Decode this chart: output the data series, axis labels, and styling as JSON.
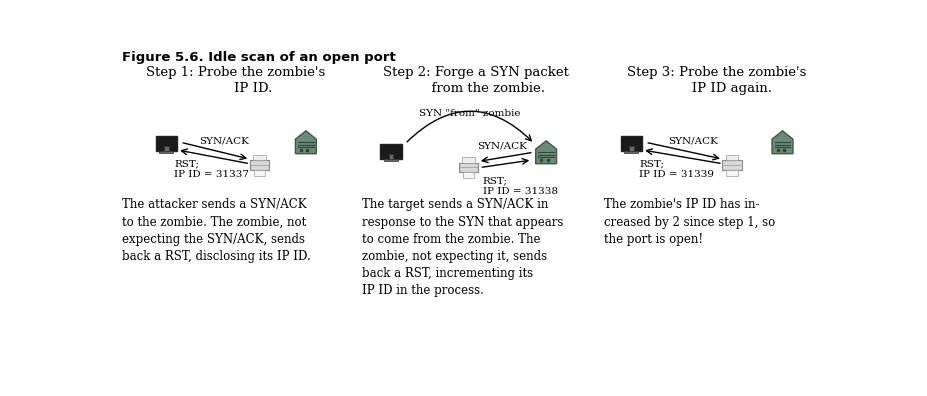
{
  "title": "Figure 5.6. Idle scan of an open port",
  "background_color": "#ffffff",
  "step1_title": "Step 1: Probe the zombie's\n        IP ID.",
  "step2_title": "Step 2: Forge a SYN packet\n      from the zombie.",
  "step3_title": "Step 3: Probe the zombie's\n       IP ID again.",
  "step2_top_label": "SYN \"from\" zombie",
  "s1_arrow1": "SYN/ACK",
  "s1_arrow2": "RST;\nIP ID = 31337",
  "s2_arrow1": "SYN/ACK",
  "s2_arrow2": "RST;\nIP ID = 31338",
  "s3_arrow1": "SYN/ACK",
  "s3_arrow2": "RST;\nIP ID = 31339",
  "desc1": "The attacker sends a SYN/ACK\nto the zombie. The zombie, not\nexpecting the SYN/ACK, sends\nback a RST, disclosing its IP ID.",
  "desc2": "The target sends a SYN/ACK in\nresponse to the SYN that appears\nto come from the zombie. The\nzombie, not expecting it, sends\nback a RST, incrementing its\nIP ID in the process.",
  "desc3": "The zombie's IP ID has in-\ncreased by 2 since step 1, so\nthe port is open!",
  "monitor_dark": "#1a1a1a",
  "monitor_body": "#444444",
  "monitor_stand": "#555555",
  "server_fill": "#6a8a7a",
  "server_edge": "#445544",
  "printer_body": "#cccccc",
  "printer_paper": "#f0f0f0"
}
